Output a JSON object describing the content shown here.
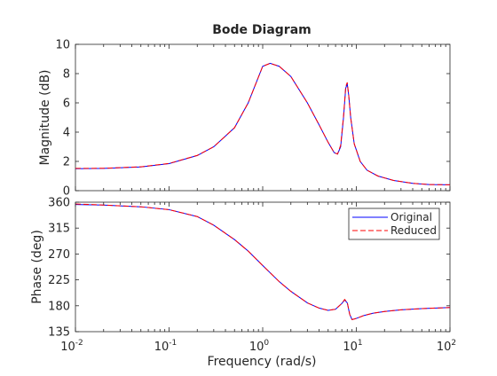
{
  "chart_data": {
    "type": "line",
    "title": "Bode Diagram",
    "xlabel": "Frequency  (rad/s)",
    "x_scale": "log",
    "xlim": [
      0.01,
      100
    ],
    "x_ticks": [
      {
        "value": 0.01,
        "base": "10",
        "exp": "-2"
      },
      {
        "value": 0.1,
        "base": "10",
        "exp": "-1"
      },
      {
        "value": 1,
        "base": "10",
        "exp": "0"
      },
      {
        "value": 10,
        "base": "10",
        "exp": "1"
      },
      {
        "value": 100,
        "base": "10",
        "exp": "2"
      }
    ],
    "grid": false,
    "legend": {
      "placement": "top-right",
      "panel": "phase"
    },
    "colors": {
      "Original": "#0000ff",
      "Reduced": "#ff0000"
    },
    "panels": [
      {
        "id": "magnitude",
        "ylabel": "Magnitude (dB)",
        "ylim": [
          0,
          10
        ],
        "y_ticks": [
          0,
          2,
          4,
          6,
          8,
          10
        ],
        "series": [
          {
            "name": "Original",
            "style": "solid",
            "x": [
              0.01,
              0.02,
              0.05,
              0.1,
              0.2,
              0.3,
              0.5,
              0.7,
              1.0,
              1.2,
              1.5,
              2.0,
              3.0,
              4.0,
              5.0,
              5.8,
              6.3,
              6.8,
              7.3,
              7.7,
              8.0,
              8.3,
              8.7,
              9.5,
              11,
              13,
              17,
              25,
              40,
              60,
              100
            ],
            "y": [
              1.5,
              1.52,
              1.62,
              1.85,
              2.4,
              3.0,
              4.3,
              6.0,
              8.5,
              8.7,
              8.5,
              7.8,
              6.0,
              4.5,
              3.3,
              2.6,
              2.5,
              3.0,
              5.0,
              7.0,
              7.3,
              6.5,
              5.0,
              3.2,
              2.0,
              1.4,
              1.0,
              0.7,
              0.5,
              0.42,
              0.4
            ]
          },
          {
            "name": "Reduced",
            "style": "dashed",
            "x": [
              0.01,
              0.02,
              0.05,
              0.1,
              0.2,
              0.3,
              0.5,
              0.7,
              1.0,
              1.2,
              1.5,
              2.0,
              3.0,
              4.0,
              5.0,
              5.8,
              6.3,
              6.8,
              7.3,
              7.7,
              8.0,
              8.3,
              8.7,
              9.5,
              11,
              13,
              17,
              25,
              40,
              60,
              100
            ],
            "y": [
              1.52,
              1.53,
              1.63,
              1.86,
              2.41,
              3.0,
              4.3,
              6.0,
              8.5,
              8.7,
              8.5,
              7.8,
              6.0,
              4.5,
              3.3,
              2.6,
              2.5,
              3.1,
              5.1,
              7.1,
              7.4,
              6.5,
              5.0,
              3.2,
              2.0,
              1.4,
              1.0,
              0.7,
              0.5,
              0.42,
              0.4
            ]
          }
        ]
      },
      {
        "id": "phase",
        "ylabel": "Phase (deg)",
        "ylim": [
          135,
          360
        ],
        "y_ticks": [
          135,
          180,
          225,
          270,
          315,
          360
        ],
        "series": [
          {
            "name": "Original",
            "style": "solid",
            "x": [
              0.01,
              0.02,
              0.05,
              0.1,
              0.2,
              0.3,
              0.5,
              0.7,
              1.0,
              1.5,
              2.0,
              3.0,
              4.0,
              5.0,
              6.0,
              7.0,
              7.5,
              8.0,
              8.5,
              9.0,
              10,
              12,
              15,
              20,
              30,
              50,
              100
            ],
            "y": [
              356,
              355,
              352,
              347,
              335,
              320,
              295,
              275,
              250,
              222,
              205,
              185,
              176,
              172,
              174,
              184,
              190,
              185,
              165,
              156,
              158,
              163,
              167,
              170,
              173,
              175,
              177
            ]
          },
          {
            "name": "Reduced",
            "style": "dashed",
            "x": [
              0.01,
              0.02,
              0.05,
              0.1,
              0.2,
              0.3,
              0.5,
              0.7,
              1.0,
              1.5,
              2.0,
              3.0,
              4.0,
              5.0,
              6.0,
              7.0,
              7.5,
              8.0,
              8.5,
              9.0,
              10,
              12,
              15,
              20,
              30,
              50,
              100
            ],
            "y": [
              357,
              355,
              352,
              347,
              335,
              320,
              295,
              275,
              250,
              222,
              205,
              185,
              176,
              172,
              174,
              184,
              191,
              186,
              165,
              156,
              158,
              163,
              167,
              170,
              173,
              175,
              177
            ]
          }
        ]
      }
    ]
  }
}
